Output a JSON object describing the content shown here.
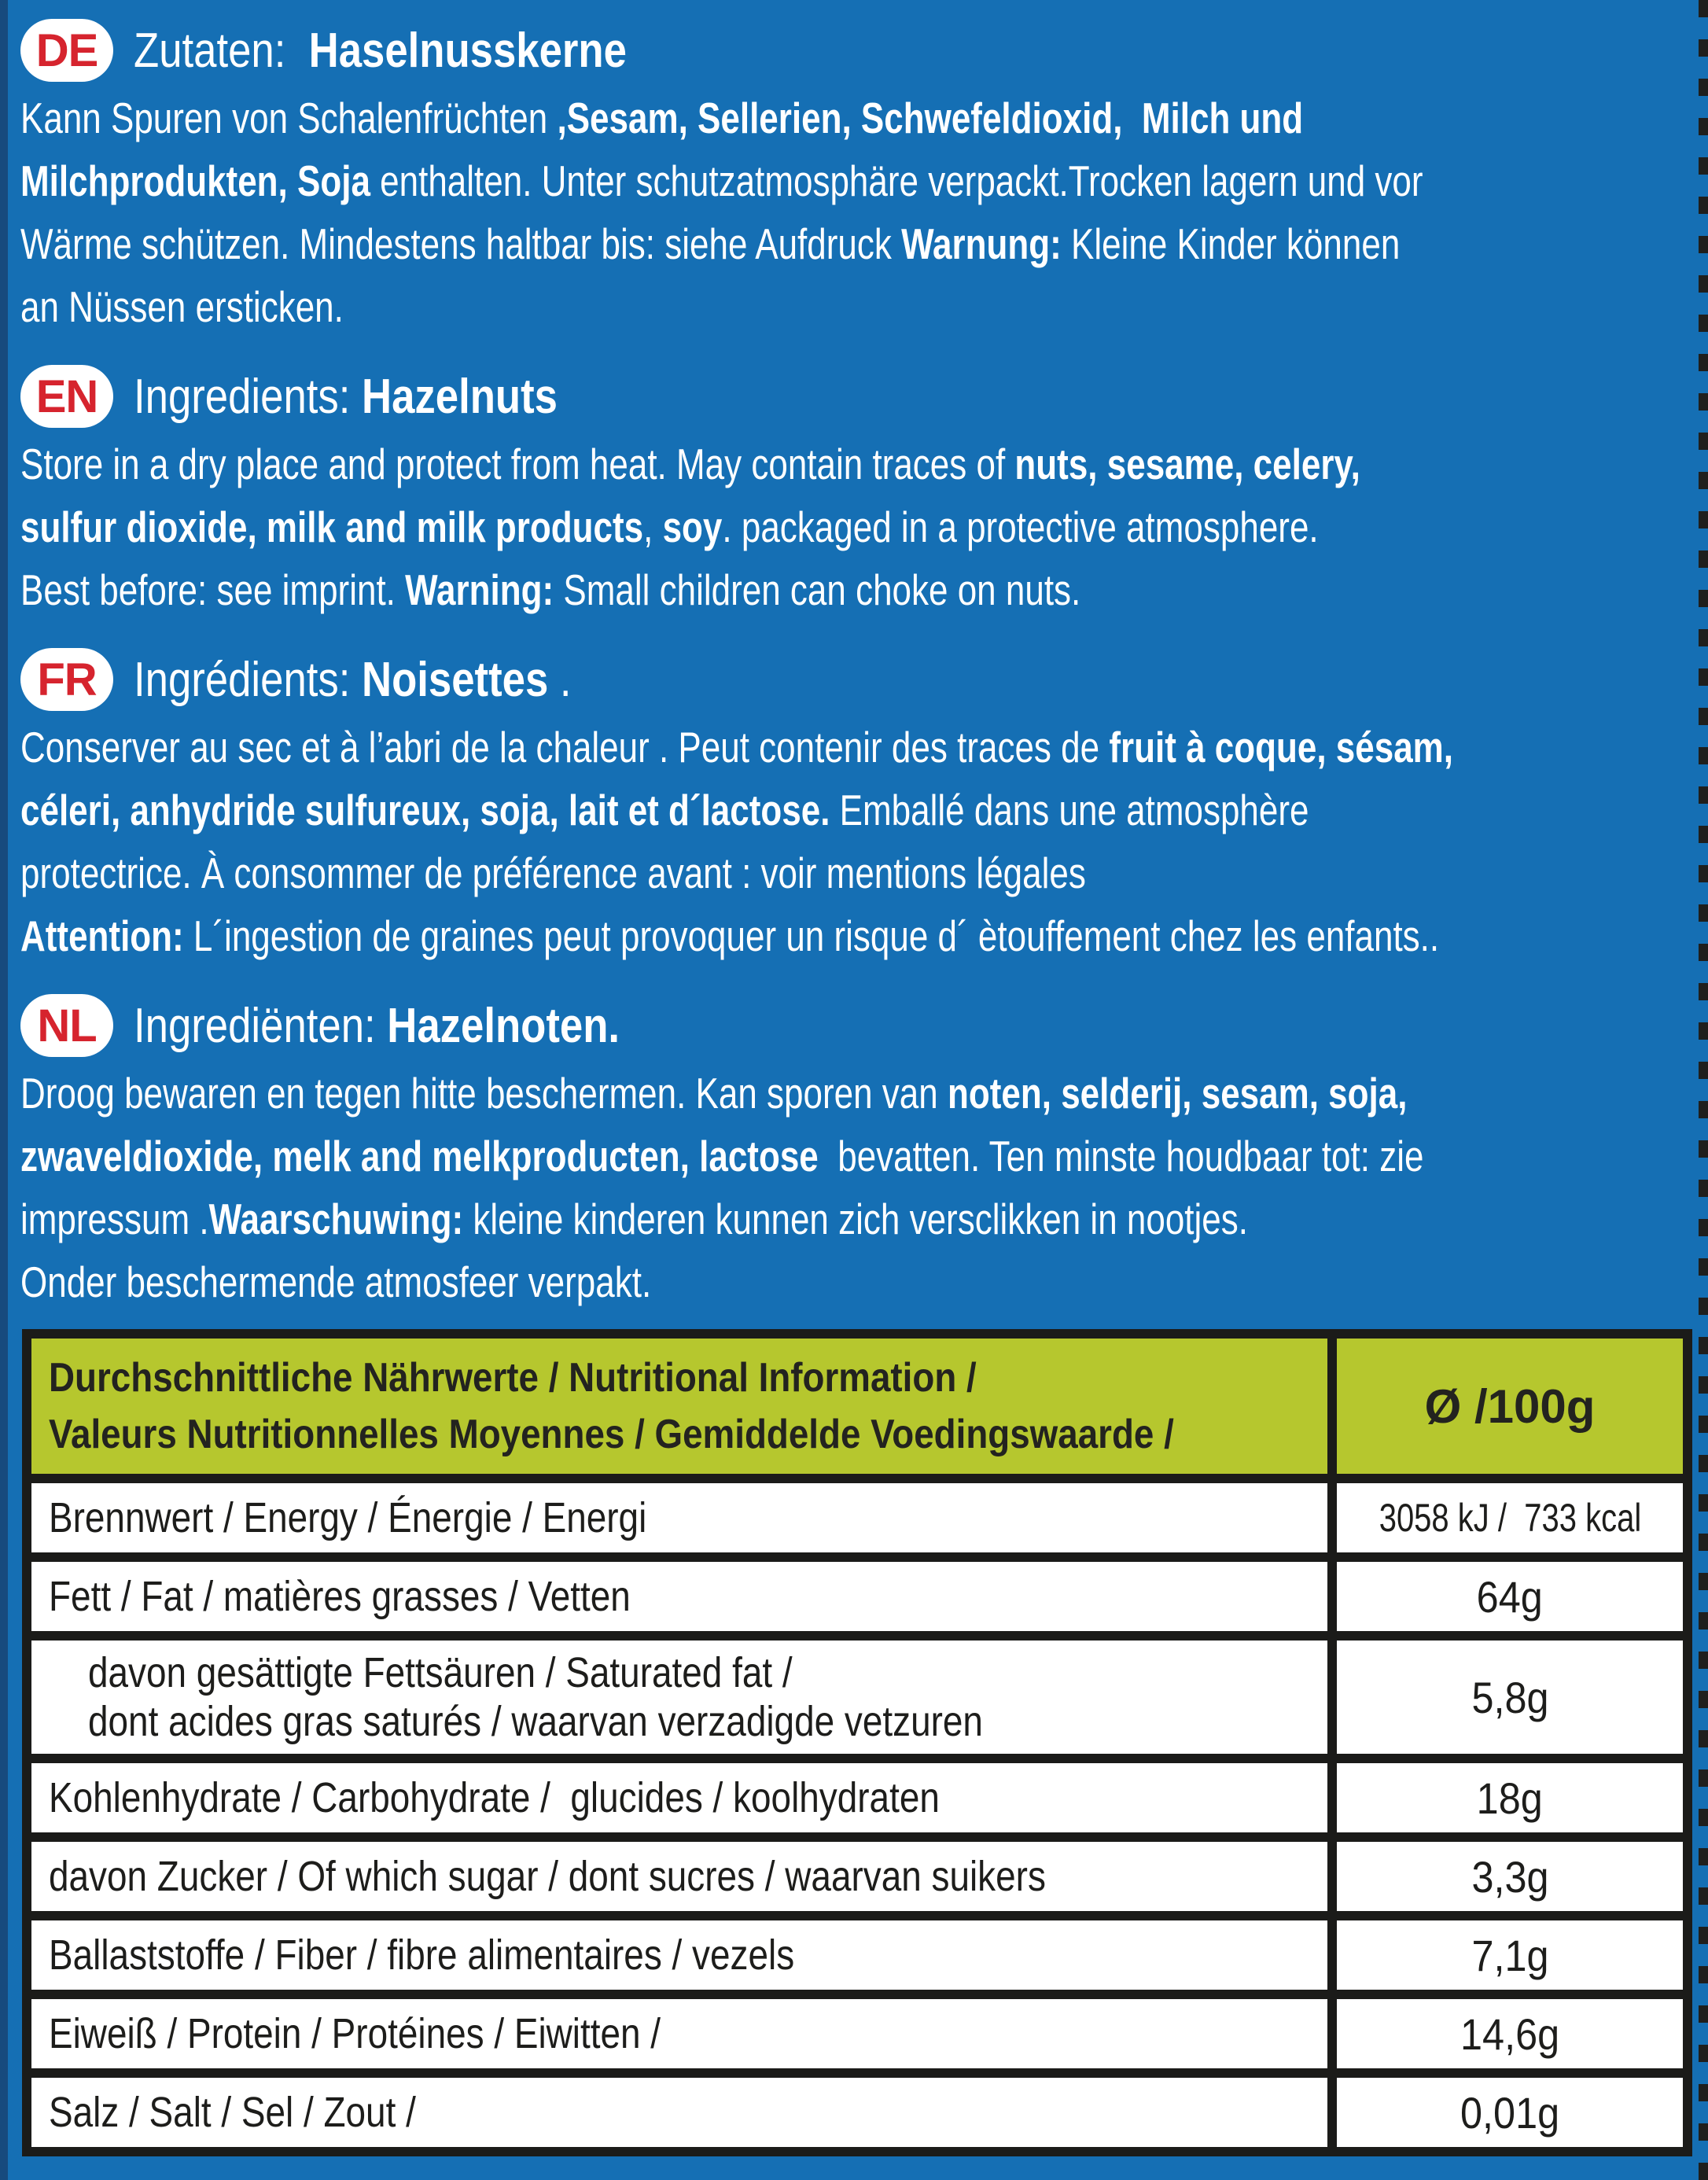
{
  "page": {
    "background_color": "#156fb4",
    "badge_text_color": "#d6242e",
    "table_header_color": "#b6c72e",
    "table_border_color": "#1b1b19",
    "table_text_color": "#1d1d1b"
  },
  "sections": [
    {
      "code": "DE",
      "heading": [
        {
          "t": "Zutaten:  ",
          "b": false
        },
        {
          "t": "Haselnusskerne",
          "b": true
        }
      ],
      "lines": [
        [
          {
            "t": "Kann Spuren von Schalenfrüchten ",
            "b": false
          },
          {
            "t": ",Sesam, Sellerien, Schwefeldioxid,  Milch und",
            "b": true
          }
        ],
        [
          {
            "t": "Milchprodukten, Soja",
            "b": true
          },
          {
            "t": " enthalten. Unter schutzatmosphäre verpackt.Trocken lagern und vor",
            "b": false
          }
        ],
        [
          {
            "t": "Wärme schützen. Mindestens haltbar bis: siehe Aufdruck ",
            "b": false
          },
          {
            "t": "Warnung:",
            "b": true
          },
          {
            "t": " Kleine Kinder können",
            "b": false
          }
        ],
        [
          {
            "t": "an Nüssen ersticken.",
            "b": false
          }
        ]
      ]
    },
    {
      "code": "EN",
      "heading": [
        {
          "t": "Ingredients: ",
          "b": false
        },
        {
          "t": "Hazelnuts",
          "b": true
        }
      ],
      "lines": [
        [
          {
            "t": "Store in a dry place and protect from heat. May contain traces of ",
            "b": false
          },
          {
            "t": "nuts, sesame, celery,",
            "b": true
          }
        ],
        [
          {
            "t": "sulfur dioxide, milk and milk products",
            "b": true
          },
          {
            "t": ", ",
            "b": false
          },
          {
            "t": "soy",
            "b": true
          },
          {
            "t": ". packaged in a protective atmosphere.",
            "b": false
          }
        ],
        [
          {
            "t": "Best before: see imprint. ",
            "b": false
          },
          {
            "t": "Warning:",
            "b": true
          },
          {
            "t": " Small children can choke on nuts.",
            "b": false
          }
        ]
      ]
    },
    {
      "code": "FR",
      "heading": [
        {
          "t": "Ingrédients: ",
          "b": false
        },
        {
          "t": "Noisettes",
          "b": true
        },
        {
          "t": " .",
          "b": false
        }
      ],
      "lines": [
        [
          {
            "t": "Conserver au sec et à l’abri de la chaleur . Peut contenir des traces de ",
            "b": false
          },
          {
            "t": "fruit à coque, sésam,",
            "b": true
          }
        ],
        [
          {
            "t": "céleri, anhydride sulfureux, soja, lait et d´lactose.",
            "b": true
          },
          {
            "t": " Emballé dans une atmosphère",
            "b": false
          }
        ],
        [
          {
            "t": "protectrice. À consommer de préférence avant : voir mentions légales",
            "b": false
          }
        ],
        [
          {
            "t": "Attention:",
            "b": true
          },
          {
            "t": " L´ingestion de graines peut provoquer un risque d´ ètouffement chez les enfants..",
            "b": false
          }
        ]
      ]
    },
    {
      "code": "NL",
      "heading": [
        {
          "t": "Ingrediënten: ",
          "b": false
        },
        {
          "t": "Hazelnoten.",
          "b": true
        }
      ],
      "lines": [
        [
          {
            "t": "Droog bewaren en tegen hitte beschermen. Kan sporen van ",
            "b": false
          },
          {
            "t": "noten, selderij, sesam, soja,",
            "b": true
          }
        ],
        [
          {
            "t": "zwaveldioxide, melk and melkproducten, lactose",
            "b": true
          },
          {
            "t": "  bevatten. Ten minste houdbaar tot: zie",
            "b": false
          }
        ],
        [
          {
            "t": "impressum .",
            "b": false
          },
          {
            "t": "Waarschuwing:",
            "b": true
          },
          {
            "t": " kleine kinderen kunnen zich versclikken in nootjes.",
            "b": false
          }
        ],
        [
          {
            "t": "Onder beschermende atmosfeer verpakt.",
            "b": false
          }
        ]
      ]
    }
  ],
  "table": {
    "header": {
      "left_lines": [
        "Durchschnittliche Nährwerte / Nutritional Information /",
        "Valeurs Nutritionnelles Moyennes / Gemiddelde Voedingswaarde /"
      ],
      "right": "Ø /100g"
    },
    "rows": [
      {
        "label_lines": [
          "Brennwert / Energy / Énergie / Energi"
        ],
        "value": "3058 kJ /  733 kcal",
        "indent": false
      },
      {
        "label_lines": [
          "Fett / Fat / matières grasses / Vetten"
        ],
        "value": "64g",
        "indent": false
      },
      {
        "label_lines": [
          "davon gesättigte Fettsäuren / Saturated fat /",
          "dont acides gras saturés / waarvan verzadigde vetzuren"
        ],
        "value": "5,8g",
        "indent": true
      },
      {
        "label_lines": [
          "Kohlenhydrate / Carbohydrate /  glucides / koolhydraten"
        ],
        "value": "18g",
        "indent": false
      },
      {
        "label_lines": [
          "davon Zucker / Of which sugar / dont sucres / waarvan suikers"
        ],
        "value": "3,3g",
        "indent": false
      },
      {
        "label_lines": [
          "Ballaststoffe / Fiber / fibre alimentaires / vezels"
        ],
        "value": "7,1g",
        "indent": false
      },
      {
        "label_lines": [
          "Eiweiß / Protein / Protéines / Eiwitten /"
        ],
        "value": "14,6g",
        "indent": false
      },
      {
        "label_lines": [
          "Salz / Salt / Sel / Zout /"
        ],
        "value": "0,01g",
        "indent": false
      }
    ]
  }
}
